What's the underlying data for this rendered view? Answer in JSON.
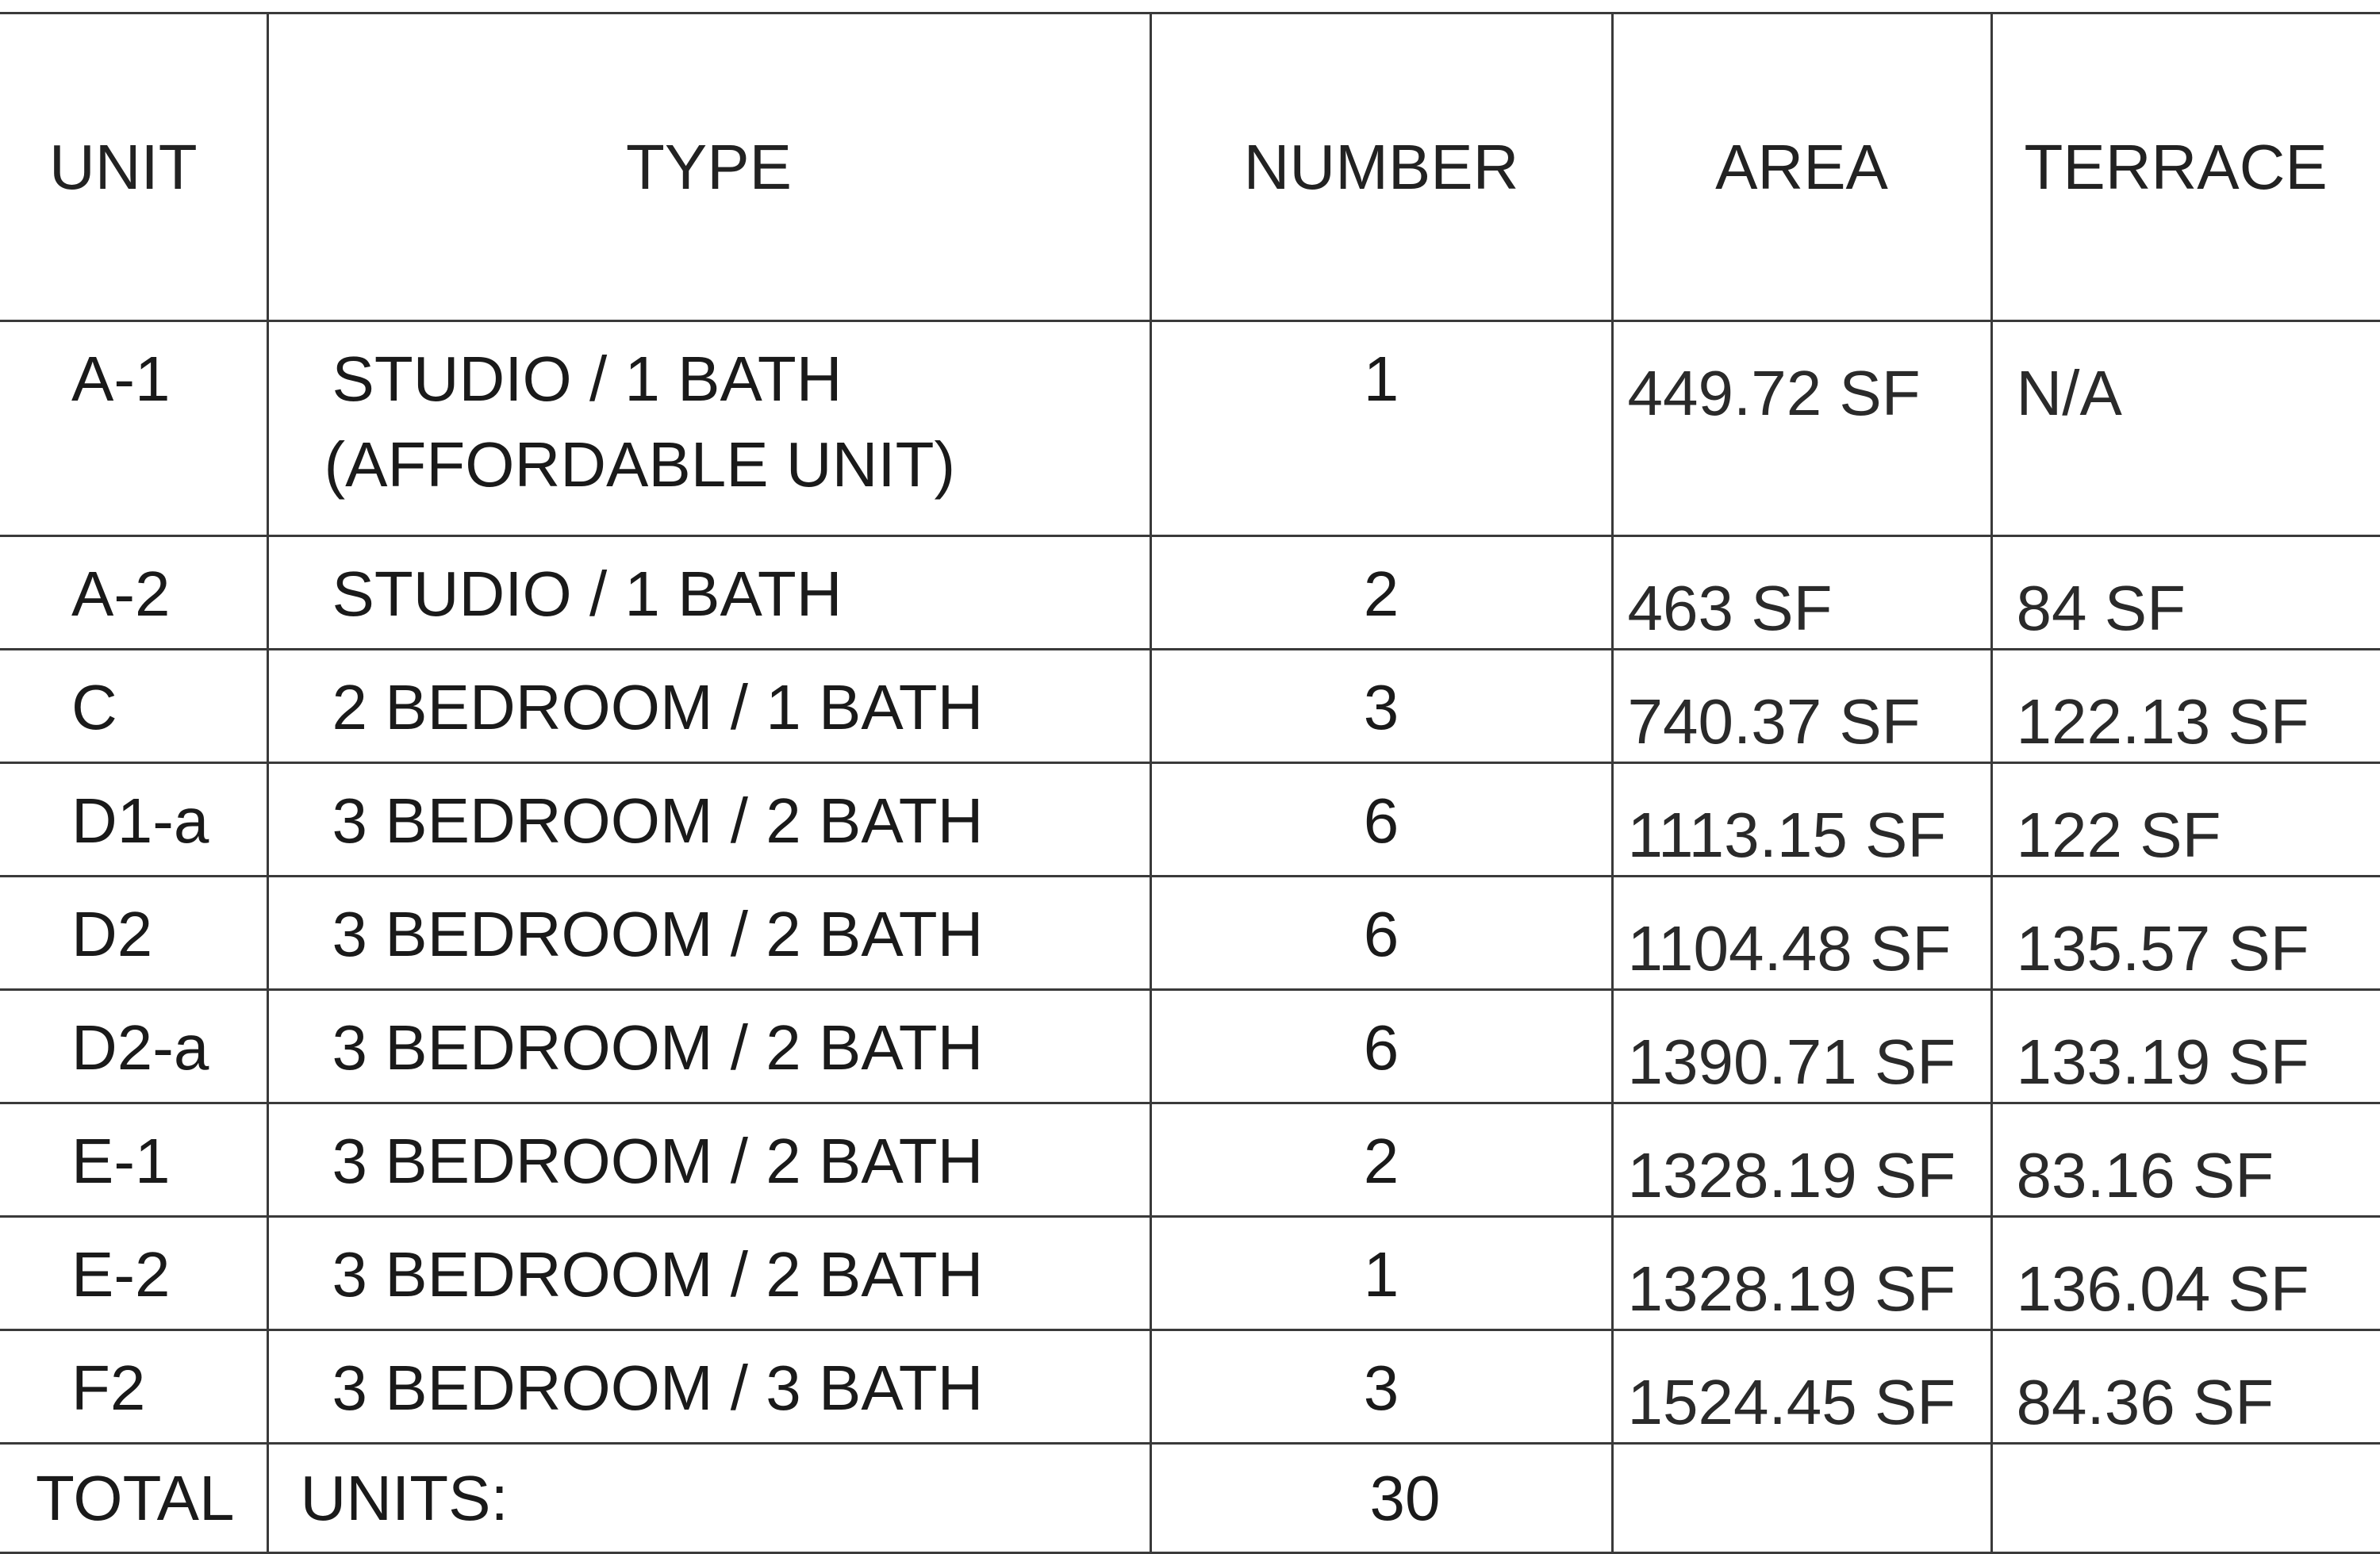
{
  "table": {
    "headers": {
      "unit": "UNIT",
      "type": "TYPE",
      "number": "NUMBER",
      "area": "AREA",
      "terrace": "TERRACE"
    },
    "rows": [
      {
        "unit": "A-1",
        "type": "STUDIO / 1 BATH",
        "type2": "(AFFORDABLE UNIT)",
        "number": "1",
        "area": "449.72 SF",
        "terrace": "N/A"
      },
      {
        "unit": "A-2",
        "type": "STUDIO / 1 BATH",
        "number": "2",
        "area": "463 SF",
        "terrace": "84 SF"
      },
      {
        "unit": "C",
        "type": "2 BEDROOM / 1 BATH",
        "number": "3",
        "area": "740.37 SF",
        "terrace": "122.13 SF"
      },
      {
        "unit": "D1-a",
        "type": "3 BEDROOM / 2 BATH",
        "number": "6",
        "area": "1113.15 SF",
        "terrace": "122 SF"
      },
      {
        "unit": "D2",
        "type": "3 BEDROOM / 2 BATH",
        "number": "6",
        "area": "1104.48 SF",
        "terrace": "135.57 SF"
      },
      {
        "unit": "D2-a",
        "type": "3 BEDROOM / 2 BATH",
        "number": "6",
        "area": "1390.71 SF",
        "terrace": "133.19 SF"
      },
      {
        "unit": "E-1",
        "type": "3 BEDROOM / 2 BATH",
        "number": "2",
        "area": "1328.19 SF",
        "terrace": "83.16 SF"
      },
      {
        "unit": "E-2",
        "type": "3 BEDROOM / 2 BATH",
        "number": "1",
        "area": "1328.19 SF",
        "terrace": "136.04 SF"
      },
      {
        "unit": "F2",
        "type": "3 BEDROOM / 3 BATH",
        "number": "3",
        "area": "1524.45 SF",
        "terrace": "84.36 SF"
      }
    ],
    "total": {
      "label": "TOTAL",
      "sublabel": "UNITS:",
      "number": "30"
    }
  }
}
